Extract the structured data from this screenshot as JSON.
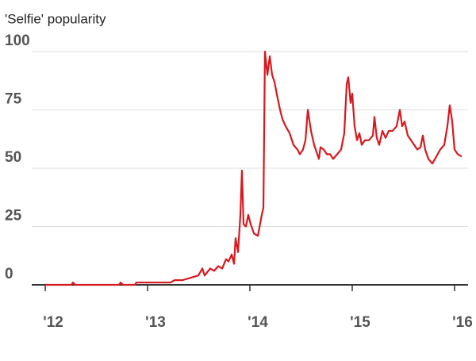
{
  "chart_data": {
    "type": "line",
    "title": "'Selfie' popularity",
    "x": [
      2012.0,
      2012.256,
      2012.271,
      2012.295,
      2012.721,
      2012.736,
      2012.76,
      2012.876,
      2012.891,
      2013.225,
      2013.264,
      2013.341,
      2013.419,
      2013.496,
      2013.535,
      2013.558,
      2013.612,
      2013.651,
      2013.69,
      2013.729,
      2013.767,
      2013.791,
      2013.822,
      2013.845,
      2013.86,
      2013.884,
      2013.907,
      2013.922,
      2013.938,
      2013.961,
      2013.984,
      2014.008,
      2014.039,
      2014.078,
      2014.116,
      2014.132,
      2014.147,
      2014.171,
      2014.194,
      2014.217,
      2014.24,
      2014.271,
      2014.295,
      2014.318,
      2014.349,
      2014.388,
      2014.426,
      2014.465,
      2014.488,
      2014.519,
      2014.543,
      2014.566,
      2014.597,
      2014.628,
      2014.659,
      2014.674,
      2014.69,
      2014.721,
      2014.752,
      2014.783,
      2014.814,
      2014.853,
      2014.891,
      2014.922,
      2014.946,
      2014.961,
      2014.984,
      2015.0,
      2015.023,
      2015.047,
      2015.07,
      2015.093,
      2015.124,
      2015.163,
      2015.202,
      2015.217,
      2015.24,
      2015.264,
      2015.295,
      2015.326,
      2015.357,
      2015.395,
      2015.434,
      2015.465,
      2015.488,
      2015.512,
      2015.543,
      2015.574,
      2015.605,
      2015.636,
      2015.667,
      2015.69,
      2015.713,
      2015.744,
      2015.783,
      2015.822,
      2015.86,
      2015.899,
      2015.93,
      2015.953,
      2015.977,
      2016.0,
      2016.031,
      2016.07
    ],
    "series": [
      {
        "name": "Selfie",
        "color": "#d7191f",
        "values": [
          0,
          0,
          1,
          0,
          0,
          1,
          0,
          0,
          1,
          1,
          2,
          2,
          3,
          4,
          7,
          4,
          7,
          6,
          8,
          7,
          11,
          10,
          13,
          9,
          20,
          14,
          30,
          49,
          26,
          25,
          30,
          26,
          22,
          21,
          30,
          33,
          100,
          90,
          98,
          90,
          87,
          80,
          75,
          71,
          68,
          65,
          60,
          58,
          56,
          58,
          62,
          75,
          66,
          60,
          56,
          54,
          59,
          58,
          56,
          56,
          54,
          56,
          58,
          65,
          86,
          89,
          78,
          82,
          68,
          62,
          65,
          60,
          62,
          62,
          64,
          72,
          63,
          60,
          66,
          63,
          66,
          66,
          68,
          75,
          68,
          70,
          64,
          62,
          60,
          58,
          59,
          64,
          58,
          54,
          52,
          55,
          58,
          60,
          68,
          77,
          70,
          58,
          56,
          55
        ]
      }
    ],
    "xlim": [
      2011.868,
      2016.132
    ],
    "xticks": [
      {
        "value": 2012,
        "label": "'12"
      },
      {
        "value": 2013,
        "label": "'13"
      },
      {
        "value": 2014,
        "label": "'14"
      },
      {
        "value": 2015,
        "label": "'15"
      },
      {
        "value": 2016,
        "label": "'16"
      }
    ],
    "ylim": [
      0,
      100
    ],
    "yticks": [
      0,
      25,
      50,
      75,
      100
    ],
    "grid": true
  }
}
